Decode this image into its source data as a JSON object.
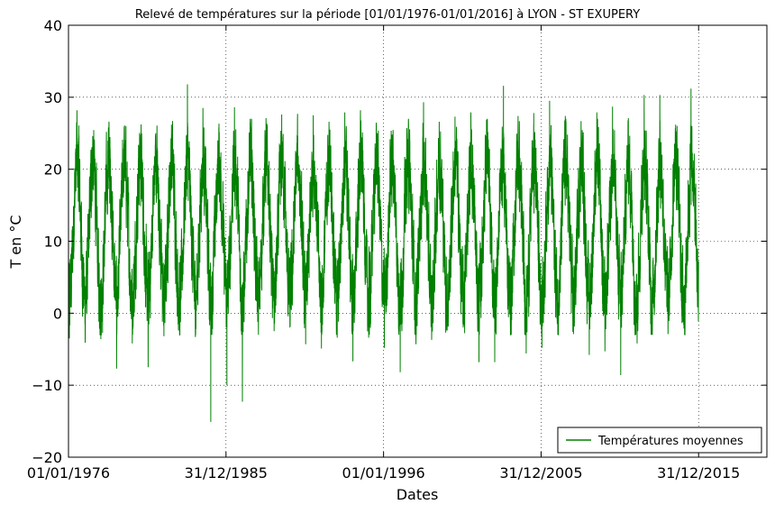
{
  "chart_data": {
    "type": "line",
    "title": "Relevé de températures sur la période [01/01/1976-01/01/2016] à LYON - ST EXUPERY",
    "xlabel": "Dates",
    "ylabel": "T en °C",
    "x_ticks": [
      "01/01/1976",
      "31/12/1985",
      "01/01/1996",
      "31/12/2005",
      "31/12/2015"
    ],
    "y_ticks": [
      "−20",
      "−10",
      "0",
      "10",
      "20",
      "30",
      "40"
    ],
    "xlim": [
      "1976-01-01",
      "2020-05-01"
    ],
    "ylim": [
      -20,
      40
    ],
    "grid": true,
    "legend_position": "bottom-right",
    "series": [
      {
        "name": "Températures moyennes",
        "color": "#008000",
        "x_start": "1976-01-01",
        "x_end": "2015-12-31",
        "annual_maxima": [
          {
            "x": "1976-07-15",
            "y": 28.2
          },
          {
            "x": "1977-07-15",
            "y": 24.6
          },
          {
            "x": "1978-07-15",
            "y": 25.8
          },
          {
            "x": "1979-07-15",
            "y": 25.9
          },
          {
            "x": "1980-07-15",
            "y": 24.8
          },
          {
            "x": "1981-07-15",
            "y": 25.0
          },
          {
            "x": "1982-07-15",
            "y": 26.2
          },
          {
            "x": "1983-07-20",
            "y": 31.8
          },
          {
            "x": "1984-07-15",
            "y": 28.5
          },
          {
            "x": "1985-07-15",
            "y": 25.8
          },
          {
            "x": "1986-07-15",
            "y": 28.6
          },
          {
            "x": "1987-07-15",
            "y": 27.0
          },
          {
            "x": "1988-07-15",
            "y": 27.1
          },
          {
            "x": "1989-07-15",
            "y": 27.6
          },
          {
            "x": "1990-07-15",
            "y": 27.7
          },
          {
            "x": "1991-07-15",
            "y": 27.5
          },
          {
            "x": "1992-07-15",
            "y": 26.6
          },
          {
            "x": "1993-07-15",
            "y": 27.9
          },
          {
            "x": "1994-07-15",
            "y": 28.2
          },
          {
            "x": "1995-07-15",
            "y": 26.0
          },
          {
            "x": "1996-07-15",
            "y": 24.8
          },
          {
            "x": "1997-07-15",
            "y": 24.2
          },
          {
            "x": "1998-07-15",
            "y": 29.3
          },
          {
            "x": "1999-07-15",
            "y": 26.6
          },
          {
            "x": "2000-07-15",
            "y": 27.3
          },
          {
            "x": "2001-07-15",
            "y": 27.9
          },
          {
            "x": "2002-07-15",
            "y": 26.9
          },
          {
            "x": "2003-08-10",
            "y": 31.6
          },
          {
            "x": "2004-07-15",
            "y": 27.4
          },
          {
            "x": "2005-07-15",
            "y": 27.8
          },
          {
            "x": "2006-07-15",
            "y": 29.5
          },
          {
            "x": "2007-07-15",
            "y": 27.4
          },
          {
            "x": "2008-07-15",
            "y": 26.7
          },
          {
            "x": "2009-07-15",
            "y": 27.9
          },
          {
            "x": "2010-07-15",
            "y": 28.7
          },
          {
            "x": "2011-07-15",
            "y": 27.1
          },
          {
            "x": "2012-07-15",
            "y": 30.3
          },
          {
            "x": "2013-07-15",
            "y": 30.3
          },
          {
            "x": "2014-07-15",
            "y": 26.2
          },
          {
            "x": "2015-07-07",
            "y": 31.2
          }
        ],
        "annual_minima": [
          {
            "x": "1976-01-20",
            "y": -3.5
          },
          {
            "x": "1977-01-20",
            "y": -4.1
          },
          {
            "x": "1978-01-20",
            "y": -3.6
          },
          {
            "x": "1979-01-20",
            "y": -7.7
          },
          {
            "x": "1980-01-20",
            "y": -4.2
          },
          {
            "x": "1981-01-20",
            "y": -7.5
          },
          {
            "x": "1982-01-20",
            "y": -3.2
          },
          {
            "x": "1983-01-20",
            "y": -3.1
          },
          {
            "x": "1984-01-20",
            "y": -3.3
          },
          {
            "x": "1985-01-10",
            "y": -15.1
          },
          {
            "x": "1986-01-20",
            "y": -10.0
          },
          {
            "x": "1987-01-15",
            "y": -12.3
          },
          {
            "x": "1988-01-20",
            "y": -1.3
          },
          {
            "x": "1989-01-20",
            "y": -2.5
          },
          {
            "x": "1990-01-20",
            "y": -2.0
          },
          {
            "x": "1991-01-20",
            "y": -4.3
          },
          {
            "x": "1992-01-20",
            "y": -4.9
          },
          {
            "x": "1993-01-20",
            "y": -3.4
          },
          {
            "x": "1994-01-20",
            "y": -6.7
          },
          {
            "x": "1995-01-20",
            "y": -3.4
          },
          {
            "x": "1996-01-20",
            "y": -4.8
          },
          {
            "x": "1997-01-20",
            "y": -8.2
          },
          {
            "x": "1998-01-20",
            "y": -4.3
          },
          {
            "x": "1999-01-20",
            "y": -3.7
          },
          {
            "x": "2000-01-20",
            "y": -1.3
          },
          {
            "x": "2001-01-20",
            "y": -2.0
          },
          {
            "x": "2002-01-20",
            "y": -6.8
          },
          {
            "x": "2003-01-20",
            "y": -6.8
          },
          {
            "x": "2004-01-20",
            "y": -2.0
          },
          {
            "x": "2005-01-20",
            "y": -5.6
          },
          {
            "x": "2006-01-20",
            "y": -4.8
          },
          {
            "x": "2007-01-20",
            "y": -0.1
          },
          {
            "x": "2008-01-20",
            "y": -2.9
          },
          {
            "x": "2009-01-20",
            "y": -5.8
          },
          {
            "x": "2010-01-20",
            "y": -5.3
          },
          {
            "x": "2011-01-20",
            "y": -8.6
          },
          {
            "x": "2012-02-05",
            "y": -4.2
          },
          {
            "x": "2013-01-20",
            "y": -2.6
          },
          {
            "x": "2014-01-20",
            "y": -2.9
          },
          {
            "x": "2015-01-20",
            "y": -1.6
          }
        ],
        "mean": 11.5
      }
    ]
  }
}
